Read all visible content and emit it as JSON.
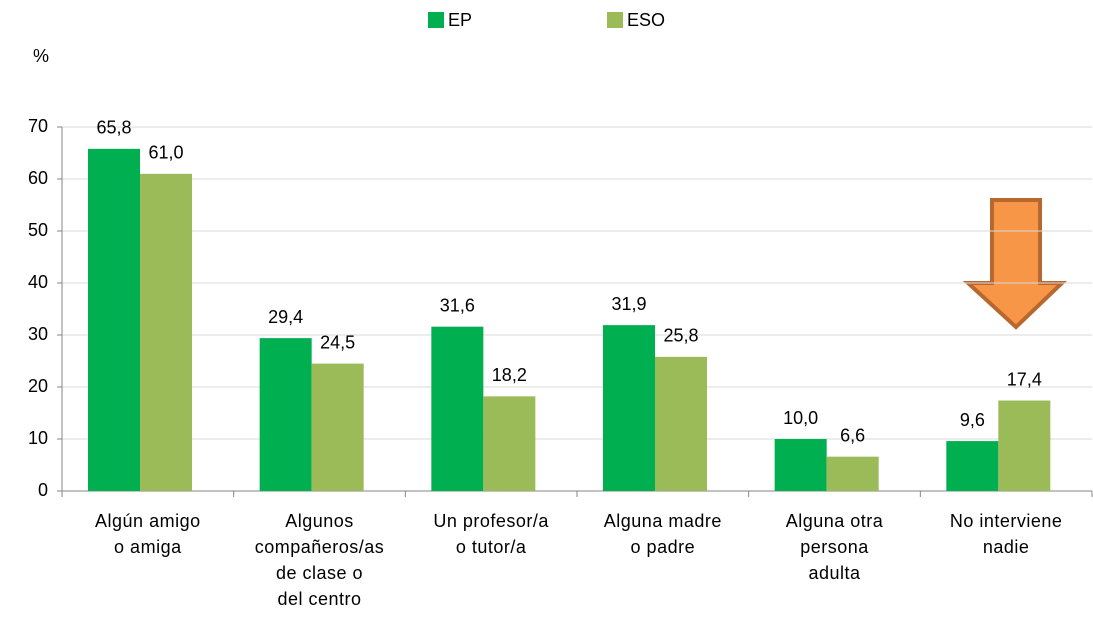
{
  "chart_data": {
    "type": "bar",
    "y_axis_label": "%",
    "categories": [
      "Algún amigo\no amiga",
      "Algunos\ncompañeros/as\nde clase o\ndel centro",
      "Un profesor/a\no tutor/a",
      "Alguna madre\no padre",
      "Alguna otra\npersona\nadulta",
      "No interviene\nnadie"
    ],
    "series": [
      {
        "name": "EP",
        "color": "#00b050",
        "values": [
          65.8,
          29.4,
          31.6,
          31.9,
          10.0,
          9.6
        ],
        "value_labels": [
          "65,8",
          "29,4",
          "31,6",
          "31,9",
          "10,0",
          "9,6"
        ]
      },
      {
        "name": "ESO",
        "color": "#9bbb59",
        "values": [
          61.0,
          24.5,
          18.2,
          25.8,
          6.6,
          17.4
        ],
        "value_labels": [
          "61,0",
          "24,5",
          "18,2",
          "25,8",
          "6,6",
          "17,4"
        ]
      }
    ],
    "ylim": [
      0,
      70
    ],
    "yticks": [
      0,
      10,
      20,
      30,
      40,
      50,
      60,
      70
    ],
    "grid": true,
    "legend": "top"
  }
}
